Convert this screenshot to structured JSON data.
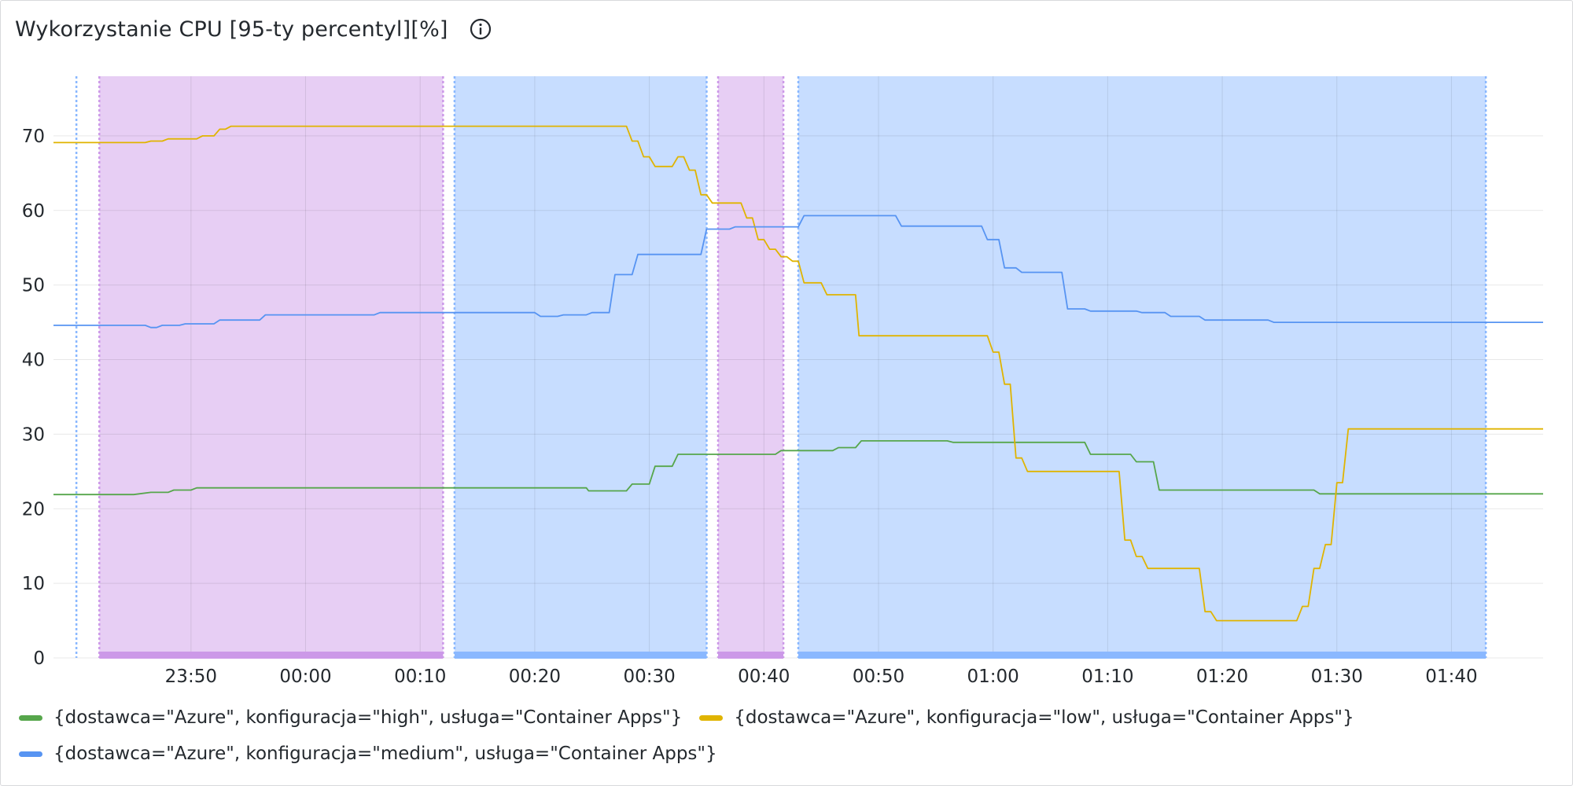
{
  "panel": {
    "title": "Wykorzystanie CPU [95-ty percentyl][%]",
    "info_icon": "info-circle-icon"
  },
  "colors": {
    "high": "#56a64b",
    "low": "#e0b400",
    "medium": "#5794f2",
    "region_purple": "#cc99e8",
    "region_blue": "#8ab8ff"
  },
  "legend": [
    {
      "label": "{dostawca=\"Azure\", konfiguracja=\"high\", usługa=\"Container Apps\"}",
      "color": "#56a64b"
    },
    {
      "label": "{dostawca=\"Azure\", konfiguracja=\"low\", usługa=\"Container Apps\"}",
      "color": "#e0b400"
    },
    {
      "label": "{dostawca=\"Azure\", konfiguracja=\"medium\", usługa=\"Container Apps\"}",
      "color": "#5794f2"
    }
  ],
  "chart_data": {
    "type": "line",
    "title": "Wykorzystanie CPU [95-ty percentyl][%]",
    "xlabel": "",
    "ylabel": "",
    "x_unit": "minutes",
    "xlim": [
      "23:38",
      "01:48"
    ],
    "ylim": [
      0,
      78
    ],
    "y_ticks": [
      0,
      10,
      20,
      30,
      40,
      50,
      60,
      70
    ],
    "x_ticks": [
      "23:50",
      "00:00",
      "00:10",
      "00:20",
      "00:30",
      "00:40",
      "00:50",
      "01:00",
      "01:10",
      "01:20",
      "01:30",
      "01:40"
    ],
    "grid": true,
    "legend_position": "bottom",
    "regions": [
      {
        "start": "23:40",
        "end": "23:40",
        "color": "blue"
      },
      {
        "start": "23:42",
        "end": "00:12",
        "color": "purple"
      },
      {
        "start": "00:13",
        "end": "00:35",
        "color": "blue"
      },
      {
        "start": "00:36",
        "end": "00:41.7",
        "color": "purple"
      },
      {
        "start": "00:43",
        "end": "01:43",
        "color": "blue"
      }
    ],
    "series": [
      {
        "name": "{dostawca=\"Azure\", konfiguracja=\"high\", usługa=\"Container Apps\"}",
        "color": "high",
        "points": [
          [
            "23:38",
            21.9
          ],
          [
            "23:45",
            21.9
          ],
          [
            "23:46.5",
            22.2
          ],
          [
            "23:48",
            22.2
          ],
          [
            "23:48.5",
            22.5
          ],
          [
            "23:50",
            22.5
          ],
          [
            "23:50.5",
            22.8
          ],
          [
            "00:16",
            22.8
          ],
          [
            "00:20",
            22.8
          ],
          [
            "00:24.5",
            22.8
          ],
          [
            "00:24.7",
            22.4
          ],
          [
            "00:28",
            22.4
          ],
          [
            "00:28.5",
            23.3
          ],
          [
            "00:30",
            23.3
          ],
          [
            "00:30.5",
            25.7
          ],
          [
            "00:32",
            25.7
          ],
          [
            "00:32.5",
            27.3
          ],
          [
            "00:40",
            27.3
          ],
          [
            "00:41",
            27.3
          ],
          [
            "00:41.5",
            27.8
          ],
          [
            "00:46",
            27.8
          ],
          [
            "00:46.5",
            28.2
          ],
          [
            "00:48",
            28.2
          ],
          [
            "00:48.5",
            29.1
          ],
          [
            "00:56",
            29.1
          ],
          [
            "00:56.5",
            28.9
          ],
          [
            "01:06",
            28.9
          ],
          [
            "01:08",
            28.9
          ],
          [
            "01:08.5",
            27.3
          ],
          [
            "01:12",
            27.3
          ],
          [
            "01:12.5",
            26.3
          ],
          [
            "01:14",
            26.3
          ],
          [
            "01:14.5",
            22.5
          ],
          [
            "01:25",
            22.5
          ],
          [
            "01:28",
            22.5
          ],
          [
            "01:28.5",
            22.0
          ],
          [
            "01:48",
            22.0
          ]
        ]
      },
      {
        "name": "{dostawca=\"Azure\", konfiguracja=\"low\", usługa=\"Container Apps\"}",
        "color": "low",
        "points": [
          [
            "23:38",
            69.1
          ],
          [
            "23:46",
            69.1
          ],
          [
            "23:46.5",
            69.3
          ],
          [
            "23:47.5",
            69.3
          ],
          [
            "23:48",
            69.6
          ],
          [
            "23:50.5",
            69.6
          ],
          [
            "23:51",
            70.0
          ],
          [
            "23:52",
            70.0
          ],
          [
            "23:52.5",
            70.9
          ],
          [
            "23:53",
            70.9
          ],
          [
            "23:53.5",
            71.3
          ],
          [
            "00:12",
            71.3
          ],
          [
            "00:18",
            71.3
          ],
          [
            "00:28",
            71.3
          ],
          [
            "00:28.5",
            69.3
          ],
          [
            "00:29",
            69.3
          ],
          [
            "00:29.5",
            67.2
          ],
          [
            "00:30",
            67.2
          ],
          [
            "00:30.5",
            65.9
          ],
          [
            "00:32",
            65.9
          ],
          [
            "00:32.5",
            67.2
          ],
          [
            "00:33",
            67.2
          ],
          [
            "00:33.5",
            65.4
          ],
          [
            "00:34",
            65.4
          ],
          [
            "00:34.5",
            62.1
          ],
          [
            "00:35",
            62.1
          ],
          [
            "00:35.5",
            61.0
          ],
          [
            "00:38",
            61.0
          ],
          [
            "00:38.5",
            59.0
          ],
          [
            "00:39",
            59.0
          ],
          [
            "00:39.5",
            56.1
          ],
          [
            "00:40",
            56.1
          ],
          [
            "00:40.5",
            54.8
          ],
          [
            "00:41",
            54.8
          ],
          [
            "00:41.5",
            53.8
          ],
          [
            "00:42",
            53.8
          ],
          [
            "00:42.5",
            53.2
          ],
          [
            "00:43",
            53.2
          ],
          [
            "00:43.5",
            50.3
          ],
          [
            "00:45",
            50.3
          ],
          [
            "00:45.5",
            48.7
          ],
          [
            "00:48",
            48.7
          ],
          [
            "00:48.3",
            43.2
          ],
          [
            "00:59.5",
            43.2
          ],
          [
            "01:00",
            41.0
          ],
          [
            "01:00.5",
            41.0
          ],
          [
            "01:01",
            36.7
          ],
          [
            "01:01.5",
            36.7
          ],
          [
            "01:02",
            26.8
          ],
          [
            "01:02.5",
            26.8
          ],
          [
            "01:03",
            25.0
          ],
          [
            "01:11",
            25.0
          ],
          [
            "01:11.5",
            15.8
          ],
          [
            "01:12",
            15.8
          ],
          [
            "01:12.5",
            13.6
          ],
          [
            "01:13",
            13.6
          ],
          [
            "01:13.5",
            12.0
          ],
          [
            "01:18",
            12.0
          ],
          [
            "01:18.5",
            6.2
          ],
          [
            "01:19",
            6.2
          ],
          [
            "01:19.5",
            5.0
          ],
          [
            "01:26.5",
            5.0
          ],
          [
            "01:27",
            6.9
          ],
          [
            "01:27.5",
            6.9
          ],
          [
            "01:28",
            12.0
          ],
          [
            "01:28.5",
            12.0
          ],
          [
            "01:29",
            15.2
          ],
          [
            "01:29.5",
            15.2
          ],
          [
            "01:30",
            23.5
          ],
          [
            "01:30.5",
            23.5
          ],
          [
            "01:31",
            30.7
          ],
          [
            "01:48",
            30.7
          ]
        ]
      },
      {
        "name": "{dostawca=\"Azure\", konfiguracja=\"medium\", usługa=\"Container Apps\"}",
        "color": "medium",
        "points": [
          [
            "23:38",
            44.6
          ],
          [
            "23:46",
            44.6
          ],
          [
            "23:46.5",
            44.3
          ],
          [
            "23:47",
            44.3
          ],
          [
            "23:47.5",
            44.6
          ],
          [
            "23:49",
            44.6
          ],
          [
            "23:49.5",
            44.8
          ],
          [
            "23:52",
            44.8
          ],
          [
            "23:52.5",
            45.3
          ],
          [
            "23:56",
            45.3
          ],
          [
            "23:56.5",
            46.0
          ],
          [
            "00:06",
            46.0
          ],
          [
            "00:06.5",
            46.3
          ],
          [
            "00:12",
            46.3
          ],
          [
            "00:20",
            46.3
          ],
          [
            "00:20.5",
            45.8
          ],
          [
            "00:22",
            45.8
          ],
          [
            "00:22.5",
            46.0
          ],
          [
            "00:24.5",
            46.0
          ],
          [
            "00:25",
            46.3
          ],
          [
            "00:26.5",
            46.3
          ],
          [
            "00:27",
            51.4
          ],
          [
            "00:28.5",
            51.4
          ],
          [
            "00:29",
            54.1
          ],
          [
            "00:34.5",
            54.1
          ],
          [
            "00:35",
            57.5
          ],
          [
            "00:37",
            57.5
          ],
          [
            "00:37.5",
            57.8
          ],
          [
            "00:43",
            57.8
          ],
          [
            "00:43.5",
            59.3
          ],
          [
            "00:51.5",
            59.3
          ],
          [
            "00:52",
            57.9
          ],
          [
            "00:59",
            57.9
          ],
          [
            "00:59.5",
            56.1
          ],
          [
            "01:00.5",
            56.1
          ],
          [
            "01:01",
            52.3
          ],
          [
            "01:02",
            52.3
          ],
          [
            "01:02.5",
            51.7
          ],
          [
            "01:06",
            51.7
          ],
          [
            "01:06.5",
            46.8
          ],
          [
            "01:08",
            46.8
          ],
          [
            "01:08.5",
            46.5
          ],
          [
            "01:12.5",
            46.5
          ],
          [
            "01:13",
            46.3
          ],
          [
            "01:15",
            46.3
          ],
          [
            "01:15.5",
            45.8
          ],
          [
            "01:18",
            45.8
          ],
          [
            "01:18.5",
            45.3
          ],
          [
            "01:24",
            45.3
          ],
          [
            "01:24.5",
            45.0
          ],
          [
            "01:48",
            45.0
          ]
        ]
      }
    ]
  }
}
